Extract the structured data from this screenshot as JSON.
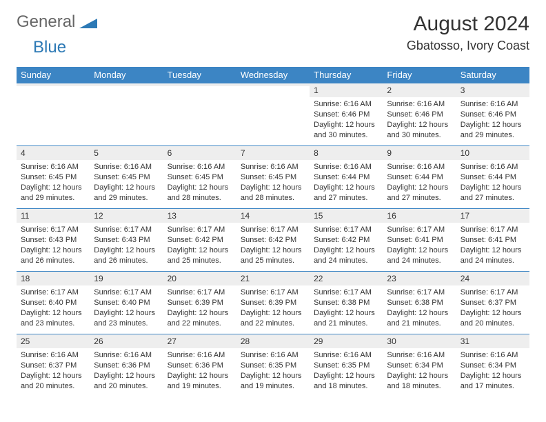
{
  "logo": {
    "text1": "General",
    "text2": "Blue"
  },
  "header": {
    "month_year": "August 2024",
    "location": "Gbatosso, Ivory Coast"
  },
  "styling": {
    "header_bg": "#3c85c4",
    "header_text": "#ffffff",
    "daynum_bg": "#eeeeee",
    "border_color": "#3c85c4",
    "body_bg": "#ffffff",
    "text_color": "#333333",
    "logo_gray": "#666666",
    "logo_blue": "#2c79b5",
    "month_fontsize": 30,
    "location_fontsize": 18,
    "dow_fontsize": 13,
    "cell_fontsize": 11
  },
  "dow": [
    "Sunday",
    "Monday",
    "Tuesday",
    "Wednesday",
    "Thursday",
    "Friday",
    "Saturday"
  ],
  "weeks": [
    [
      {
        "n": "",
        "sr": "",
        "ss": "",
        "d1": "",
        "d2": ""
      },
      {
        "n": "",
        "sr": "",
        "ss": "",
        "d1": "",
        "d2": ""
      },
      {
        "n": "",
        "sr": "",
        "ss": "",
        "d1": "",
        "d2": ""
      },
      {
        "n": "",
        "sr": "",
        "ss": "",
        "d1": "",
        "d2": ""
      },
      {
        "n": "1",
        "sr": "Sunrise: 6:16 AM",
        "ss": "Sunset: 6:46 PM",
        "d1": "Daylight: 12 hours",
        "d2": "and 30 minutes."
      },
      {
        "n": "2",
        "sr": "Sunrise: 6:16 AM",
        "ss": "Sunset: 6:46 PM",
        "d1": "Daylight: 12 hours",
        "d2": "and 30 minutes."
      },
      {
        "n": "3",
        "sr": "Sunrise: 6:16 AM",
        "ss": "Sunset: 6:46 PM",
        "d1": "Daylight: 12 hours",
        "d2": "and 29 minutes."
      }
    ],
    [
      {
        "n": "4",
        "sr": "Sunrise: 6:16 AM",
        "ss": "Sunset: 6:45 PM",
        "d1": "Daylight: 12 hours",
        "d2": "and 29 minutes."
      },
      {
        "n": "5",
        "sr": "Sunrise: 6:16 AM",
        "ss": "Sunset: 6:45 PM",
        "d1": "Daylight: 12 hours",
        "d2": "and 29 minutes."
      },
      {
        "n": "6",
        "sr": "Sunrise: 6:16 AM",
        "ss": "Sunset: 6:45 PM",
        "d1": "Daylight: 12 hours",
        "d2": "and 28 minutes."
      },
      {
        "n": "7",
        "sr": "Sunrise: 6:16 AM",
        "ss": "Sunset: 6:45 PM",
        "d1": "Daylight: 12 hours",
        "d2": "and 28 minutes."
      },
      {
        "n": "8",
        "sr": "Sunrise: 6:16 AM",
        "ss": "Sunset: 6:44 PM",
        "d1": "Daylight: 12 hours",
        "d2": "and 27 minutes."
      },
      {
        "n": "9",
        "sr": "Sunrise: 6:16 AM",
        "ss": "Sunset: 6:44 PM",
        "d1": "Daylight: 12 hours",
        "d2": "and 27 minutes."
      },
      {
        "n": "10",
        "sr": "Sunrise: 6:16 AM",
        "ss": "Sunset: 6:44 PM",
        "d1": "Daylight: 12 hours",
        "d2": "and 27 minutes."
      }
    ],
    [
      {
        "n": "11",
        "sr": "Sunrise: 6:17 AM",
        "ss": "Sunset: 6:43 PM",
        "d1": "Daylight: 12 hours",
        "d2": "and 26 minutes."
      },
      {
        "n": "12",
        "sr": "Sunrise: 6:17 AM",
        "ss": "Sunset: 6:43 PM",
        "d1": "Daylight: 12 hours",
        "d2": "and 26 minutes."
      },
      {
        "n": "13",
        "sr": "Sunrise: 6:17 AM",
        "ss": "Sunset: 6:42 PM",
        "d1": "Daylight: 12 hours",
        "d2": "and 25 minutes."
      },
      {
        "n": "14",
        "sr": "Sunrise: 6:17 AM",
        "ss": "Sunset: 6:42 PM",
        "d1": "Daylight: 12 hours",
        "d2": "and 25 minutes."
      },
      {
        "n": "15",
        "sr": "Sunrise: 6:17 AM",
        "ss": "Sunset: 6:42 PM",
        "d1": "Daylight: 12 hours",
        "d2": "and 24 minutes."
      },
      {
        "n": "16",
        "sr": "Sunrise: 6:17 AM",
        "ss": "Sunset: 6:41 PM",
        "d1": "Daylight: 12 hours",
        "d2": "and 24 minutes."
      },
      {
        "n": "17",
        "sr": "Sunrise: 6:17 AM",
        "ss": "Sunset: 6:41 PM",
        "d1": "Daylight: 12 hours",
        "d2": "and 24 minutes."
      }
    ],
    [
      {
        "n": "18",
        "sr": "Sunrise: 6:17 AM",
        "ss": "Sunset: 6:40 PM",
        "d1": "Daylight: 12 hours",
        "d2": "and 23 minutes."
      },
      {
        "n": "19",
        "sr": "Sunrise: 6:17 AM",
        "ss": "Sunset: 6:40 PM",
        "d1": "Daylight: 12 hours",
        "d2": "and 23 minutes."
      },
      {
        "n": "20",
        "sr": "Sunrise: 6:17 AM",
        "ss": "Sunset: 6:39 PM",
        "d1": "Daylight: 12 hours",
        "d2": "and 22 minutes."
      },
      {
        "n": "21",
        "sr": "Sunrise: 6:17 AM",
        "ss": "Sunset: 6:39 PM",
        "d1": "Daylight: 12 hours",
        "d2": "and 22 minutes."
      },
      {
        "n": "22",
        "sr": "Sunrise: 6:17 AM",
        "ss": "Sunset: 6:38 PM",
        "d1": "Daylight: 12 hours",
        "d2": "and 21 minutes."
      },
      {
        "n": "23",
        "sr": "Sunrise: 6:17 AM",
        "ss": "Sunset: 6:38 PM",
        "d1": "Daylight: 12 hours",
        "d2": "and 21 minutes."
      },
      {
        "n": "24",
        "sr": "Sunrise: 6:17 AM",
        "ss": "Sunset: 6:37 PM",
        "d1": "Daylight: 12 hours",
        "d2": "and 20 minutes."
      }
    ],
    [
      {
        "n": "25",
        "sr": "Sunrise: 6:16 AM",
        "ss": "Sunset: 6:37 PM",
        "d1": "Daylight: 12 hours",
        "d2": "and 20 minutes."
      },
      {
        "n": "26",
        "sr": "Sunrise: 6:16 AM",
        "ss": "Sunset: 6:36 PM",
        "d1": "Daylight: 12 hours",
        "d2": "and 20 minutes."
      },
      {
        "n": "27",
        "sr": "Sunrise: 6:16 AM",
        "ss": "Sunset: 6:36 PM",
        "d1": "Daylight: 12 hours",
        "d2": "and 19 minutes."
      },
      {
        "n": "28",
        "sr": "Sunrise: 6:16 AM",
        "ss": "Sunset: 6:35 PM",
        "d1": "Daylight: 12 hours",
        "d2": "and 19 minutes."
      },
      {
        "n": "29",
        "sr": "Sunrise: 6:16 AM",
        "ss": "Sunset: 6:35 PM",
        "d1": "Daylight: 12 hours",
        "d2": "and 18 minutes."
      },
      {
        "n": "30",
        "sr": "Sunrise: 6:16 AM",
        "ss": "Sunset: 6:34 PM",
        "d1": "Daylight: 12 hours",
        "d2": "and 18 minutes."
      },
      {
        "n": "31",
        "sr": "Sunrise: 6:16 AM",
        "ss": "Sunset: 6:34 PM",
        "d1": "Daylight: 12 hours",
        "d2": "and 17 minutes."
      }
    ]
  ]
}
